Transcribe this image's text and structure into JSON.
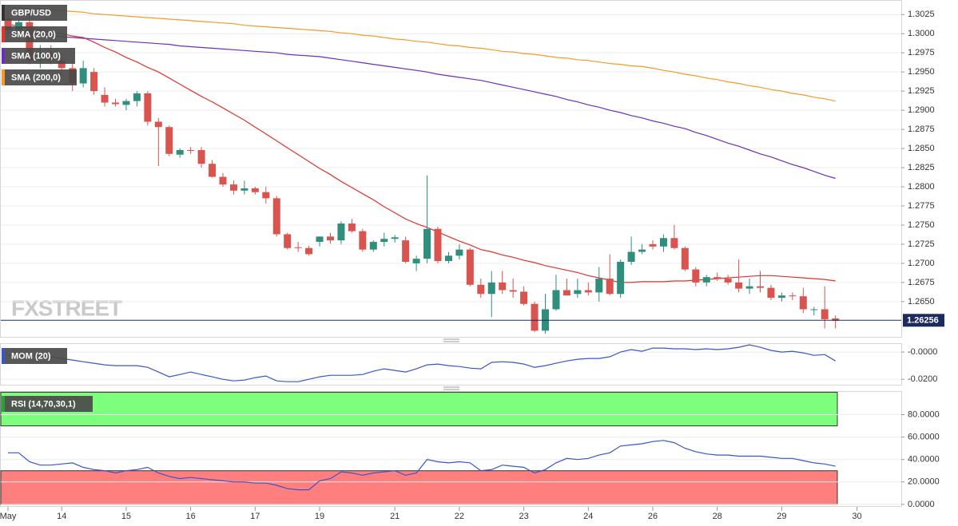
{
  "chart_data": [
    {
      "type": "candlestick",
      "name": "GBP/USD",
      "brand": "FXSTREET",
      "categories": [
        "May",
        null,
        null,
        null,
        null,
        "14",
        null,
        null,
        null,
        null,
        null,
        "15",
        null,
        null,
        null,
        null,
        null,
        "16",
        null,
        null,
        null,
        null,
        null,
        "17",
        null,
        null,
        null,
        null,
        null,
        "19",
        null,
        null,
        null,
        null,
        null,
        null,
        "21",
        null,
        null,
        null,
        null,
        null,
        "22",
        null,
        null,
        null,
        null,
        null,
        "23",
        null,
        null,
        null,
        null,
        null,
        "24",
        null,
        null,
        null,
        null,
        null,
        "26",
        null,
        null,
        null,
        null,
        null,
        "28",
        null,
        null,
        null,
        null,
        null,
        "29",
        null,
        null,
        null,
        null,
        null,
        null,
        "30"
      ],
      "open": [
        1.302,
        1.3005,
        1.3015,
        1.2965,
        1.2975,
        1.2965,
        1.2955,
        1.2935,
        1.295,
        1.292,
        1.291,
        1.2907,
        1.2912,
        1.2922,
        1.2885,
        1.2878,
        1.2842,
        1.2848,
        1.2848,
        1.283,
        1.2813,
        1.2803,
        1.2795,
        1.2798,
        1.2793,
        1.2785,
        1.2738,
        1.2721,
        1.272,
        1.2728,
        1.2735,
        1.273,
        1.2752,
        1.2742,
        1.2718,
        1.2728,
        1.2732,
        1.273,
        1.27,
        1.2706,
        1.2745,
        1.2703,
        1.271,
        1.2718,
        1.2672,
        1.266,
        1.2675,
        1.2665,
        1.2663,
        1.2647,
        1.2612,
        1.264,
        1.2665,
        1.266,
        1.2665,
        1.2662,
        1.268,
        1.266,
        1.2702,
        1.2715,
        1.2725,
        1.2722,
        1.2733,
        1.272,
        1.2692,
        1.2675,
        1.2682,
        1.268,
        1.2675,
        1.2667,
        1.267,
        1.2668,
        1.2655,
        1.2658,
        1.2657,
        1.264,
        1.264,
        1.2628,
        null,
        null
      ],
      "high": [
        1.303,
        1.3025,
        1.303,
        1.2985,
        1.2985,
        1.2975,
        1.2965,
        1.2965,
        1.2955,
        1.293,
        1.2915,
        1.2915,
        1.2925,
        1.2925,
        1.289,
        1.288,
        1.285,
        1.2852,
        1.2852,
        1.2835,
        1.2818,
        1.2808,
        1.2808,
        1.28,
        1.28,
        1.2788,
        1.274,
        1.2728,
        1.2723,
        1.2735,
        1.274,
        1.2755,
        1.2758,
        1.2745,
        1.273,
        1.274,
        1.2737,
        1.2735,
        1.271,
        1.2815,
        1.2748,
        1.2715,
        1.2725,
        1.272,
        1.268,
        1.269,
        1.269,
        1.268,
        1.267,
        1.265,
        1.266,
        1.2685,
        1.268,
        1.268,
        1.2675,
        1.2695,
        1.2712,
        1.2705,
        1.2735,
        1.2725,
        1.273,
        1.2738,
        1.275,
        1.2722,
        1.2695,
        1.2685,
        1.2688,
        1.2685,
        1.2705,
        1.268,
        1.269,
        1.2672,
        1.2662,
        1.2662,
        1.2668,
        1.2643,
        1.267,
        1.2632,
        null,
        null
      ],
      "low": [
        1.3,
        1.2995,
        1.296,
        1.2955,
        1.296,
        1.2945,
        1.2925,
        1.293,
        1.292,
        1.2905,
        1.2905,
        1.29,
        1.2905,
        1.288,
        1.2827,
        1.284,
        1.2838,
        1.2843,
        1.2825,
        1.2812,
        1.28,
        1.279,
        1.279,
        1.279,
        1.2778,
        1.2735,
        1.2718,
        1.2715,
        1.271,
        1.2722,
        1.2726,
        1.2725,
        1.274,
        1.2715,
        1.2715,
        1.2722,
        1.2727,
        1.27,
        1.269,
        1.27,
        1.27,
        1.27,
        1.2705,
        1.267,
        1.2655,
        1.263,
        1.266,
        1.2655,
        1.2645,
        1.261,
        1.2608,
        1.2638,
        1.2658,
        1.2655,
        1.2658,
        1.265,
        1.2658,
        1.2655,
        1.2698,
        1.2712,
        1.2718,
        1.2715,
        1.2718,
        1.269,
        1.267,
        1.267,
        1.2677,
        1.2672,
        1.2662,
        1.266,
        1.2662,
        1.2652,
        1.265,
        1.2652,
        1.2635,
        1.2632,
        1.2615,
        1.2615,
        null,
        null
      ],
      "close": [
        1.3005,
        1.3015,
        1.2965,
        1.2975,
        1.2965,
        1.2955,
        1.2935,
        1.2955,
        1.2925,
        1.291,
        1.2908,
        1.2912,
        1.2922,
        1.2885,
        1.2878,
        1.2843,
        1.2848,
        1.2847,
        1.283,
        1.2813,
        1.2803,
        1.2795,
        1.2798,
        1.2793,
        1.2785,
        1.2738,
        1.272,
        1.272,
        1.2712,
        1.2735,
        1.273,
        1.2752,
        1.2742,
        1.2718,
        1.2728,
        1.2732,
        1.2734,
        1.2702,
        1.2706,
        1.2745,
        1.2703,
        1.271,
        1.2718,
        1.2672,
        1.266,
        1.2675,
        1.2665,
        1.2663,
        1.2647,
        1.2612,
        1.264,
        1.2665,
        1.2658,
        1.2665,
        1.2662,
        1.268,
        1.266,
        1.2702,
        1.2715,
        1.2718,
        1.2722,
        1.2733,
        1.272,
        1.2692,
        1.2675,
        1.2682,
        1.268,
        1.2675,
        1.2667,
        1.267,
        1.2668,
        1.2655,
        1.2658,
        1.2657,
        1.264,
        1.264,
        1.2627,
        1.2625,
        null,
        null
      ],
      "up_color": "#2f8f7c",
      "down_color": "#d9534f",
      "series": [
        {
          "name": "SMA (20,0)",
          "color": "#e0332b",
          "values": [
            1.3012,
            1.301,
            1.3007,
            1.3005,
            1.3002,
            1.3,
            1.2997,
            1.2995,
            1.2989,
            1.2982,
            1.2976,
            1.2969,
            1.2963,
            1.2956,
            1.295,
            1.2942,
            1.2934,
            1.2926,
            1.2918,
            1.2911,
            1.2903,
            1.2895,
            1.2887,
            1.2878,
            1.2869,
            1.286,
            1.2851,
            1.2842,
            1.2833,
            1.2824,
            1.2816,
            1.2807,
            1.2799,
            1.2791,
            1.2783,
            1.2774,
            1.2766,
            1.2758,
            1.2752,
            1.2747,
            1.2741,
            1.2735,
            1.2729,
            1.2724,
            1.2718,
            1.2715,
            1.2711,
            1.2708,
            1.2704,
            1.2701,
            1.2697,
            1.2694,
            1.2691,
            1.2688,
            1.2684,
            1.2681,
            1.2678,
            1.2675,
            1.2675,
            1.2676,
            1.2676,
            1.2676,
            1.2677,
            1.2677,
            1.2678,
            1.2679,
            1.268,
            1.2681,
            1.2682,
            1.2683,
            1.2684,
            1.2684,
            1.2683,
            1.2682,
            1.2681,
            1.268,
            1.2679,
            1.2677,
            null,
            null
          ]
        },
        {
          "name": "SMA (100,0)",
          "color": "#6a2fbf",
          "values": [
            1.3002,
            1.3001,
            1.3,
            1.2999,
            1.2998,
            1.2996,
            1.2995,
            1.2994,
            1.2993,
            1.2992,
            1.2991,
            1.299,
            1.2989,
            1.2988,
            1.2987,
            1.2986,
            1.2984,
            1.2983,
            1.2982,
            1.2981,
            1.298,
            1.2979,
            1.2978,
            1.2977,
            1.2976,
            1.2975,
            1.2973,
            1.2972,
            1.2971,
            1.297,
            1.2968,
            1.2966,
            1.2964,
            1.2962,
            1.296,
            1.2958,
            1.2956,
            1.2954,
            1.2952,
            1.295,
            1.2947,
            1.2945,
            1.2943,
            1.2941,
            1.2939,
            1.2936,
            1.2933,
            1.293,
            1.2927,
            1.2924,
            1.2921,
            1.2918,
            1.2914,
            1.2911,
            1.2907,
            1.2904,
            1.29,
            1.2897,
            1.2893,
            1.289,
            1.2886,
            1.2883,
            1.2879,
            1.2876,
            1.2871,
            1.2867,
            1.2862,
            1.2857,
            1.2853,
            1.2848,
            1.2843,
            1.2839,
            1.2834,
            1.2829,
            1.2825,
            1.282,
            1.2815,
            1.2811,
            null,
            null
          ]
        },
        {
          "name": "SMA (200,0)",
          "color": "#f39a2b",
          "values": [
            1.3035,
            1.3034,
            1.3033,
            1.3032,
            1.3031,
            1.303,
            1.3029,
            1.3028,
            1.3026,
            1.3025,
            1.3024,
            1.3023,
            1.3022,
            1.3021,
            1.302,
            1.3019,
            1.3018,
            1.3017,
            1.3016,
            1.3015,
            1.3014,
            1.3013,
            1.3011,
            1.301,
            1.3009,
            1.3008,
            1.3007,
            1.3006,
            1.3005,
            1.3004,
            1.3003,
            1.3001,
            1.3,
            1.2998,
            1.2997,
            1.2995,
            1.2993,
            1.2992,
            1.299,
            1.2989,
            1.2987,
            1.2985,
            1.2984,
            1.2982,
            1.2981,
            1.2979,
            1.2977,
            1.2976,
            1.2974,
            1.2973,
            1.2971,
            1.2969,
            1.2968,
            1.2966,
            1.2965,
            1.2963,
            1.2961,
            1.296,
            1.2958,
            1.2957,
            1.2955,
            1.2952,
            1.295,
            1.2947,
            1.2945,
            1.2942,
            1.294,
            1.2937,
            1.2935,
            1.2932,
            1.293,
            1.2927,
            1.2925,
            1.2922,
            1.292,
            1.2917,
            1.2915,
            1.2912,
            null,
            null
          ]
        }
      ],
      "last": 1.26256,
      "last_color": "#1c2b5e",
      "ylim": [
        1.2604,
        1.3044
      ],
      "yticks": [
        {
          "value": 1.265,
          "label": "1.2650"
        },
        {
          "value": 1.2675,
          "label": "1.2675"
        },
        {
          "value": 1.27,
          "label": "1.2700"
        },
        {
          "value": 1.2725,
          "label": "1.2725"
        },
        {
          "value": 1.275,
          "label": "1.2750"
        },
        {
          "value": 1.2775,
          "label": "1.2775"
        },
        {
          "value": 1.28,
          "label": "1.2800"
        },
        {
          "value": 1.2825,
          "label": "1.2825"
        },
        {
          "value": 1.285,
          "label": "1.2850"
        },
        {
          "value": 1.2875,
          "label": "1.2875"
        },
        {
          "value": 1.29,
          "label": "1.2900"
        },
        {
          "value": 1.2925,
          "label": "1.2925"
        },
        {
          "value": 1.295,
          "label": "1.2950"
        },
        {
          "value": 1.2975,
          "label": "1.2975"
        },
        {
          "value": 1.3,
          "label": "1.3000"
        },
        {
          "value": 1.3025,
          "label": "1.3025"
        }
      ],
      "grid": true
    },
    {
      "type": "line",
      "series": [
        {
          "name": "MOM (20)",
          "color": "#3a55c8",
          "values": [
            -0.0024,
            -0.0024,
            -0.0024,
            -0.0024,
            -0.0035,
            -0.0047,
            -0.0059,
            -0.0071,
            -0.0082,
            -0.0094,
            -0.01,
            -0.01,
            -0.01,
            -0.0112,
            -0.0147,
            -0.0182,
            -0.0165,
            -0.0147,
            -0.0165,
            -0.0182,
            -0.02,
            -0.0212,
            -0.0206,
            -0.0188,
            -0.0176,
            -0.0212,
            -0.0218,
            -0.0218,
            -0.02,
            -0.0182,
            -0.0171,
            -0.0171,
            -0.0171,
            -0.0165,
            -0.0141,
            -0.0123,
            -0.0135,
            -0.0147,
            -0.0123,
            -0.0094,
            -0.0088,
            -0.01,
            -0.0106,
            -0.0118,
            -0.0123,
            -0.0076,
            -0.0071,
            -0.0076,
            -0.0088,
            -0.0112,
            -0.01,
            -0.0082,
            -0.0065,
            -0.0053,
            -0.0047,
            -0.0047,
            -0.0035,
            0.0,
            0.0018,
            0.0006,
            0.0029,
            0.0029,
            0.0024,
            0.0024,
            0.0018,
            0.0024,
            0.0018,
            0.0024,
            0.0035,
            0.0053,
            0.0035,
            0.0012,
            0.0,
            0.0006,
            -0.0006,
            -0.0024,
            -0.0018,
            -0.0065,
            null,
            null
          ]
        }
      ],
      "ylim": [
        -0.024,
        0.0065
      ],
      "yticks": [
        {
          "value": 0,
          "label": "-0.0000"
        },
        {
          "value": -0.02,
          "label": "-0.0200"
        }
      ],
      "grid": true
    },
    {
      "type": "line",
      "series": [
        {
          "name": "RSI (14,70,30,1)",
          "color": "#3a55c8",
          "values": [
            46,
            46,
            38,
            35,
            35,
            36,
            37,
            33,
            31,
            30,
            28,
            30,
            31,
            33,
            28,
            25,
            23,
            24,
            23,
            22,
            21,
            20,
            20,
            19,
            19,
            17,
            14,
            13,
            13,
            21,
            23,
            29,
            28,
            26,
            28,
            29,
            30,
            26,
            28,
            40,
            38,
            37,
            38,
            37,
            30,
            31,
            35,
            34,
            33,
            28,
            31,
            37,
            41,
            40,
            41,
            44,
            46,
            52,
            53,
            54,
            56,
            57,
            55,
            50,
            47,
            45,
            44,
            44,
            43,
            43,
            43,
            42,
            41,
            41,
            39,
            37,
            36,
            34,
            null,
            null
          ]
        }
      ],
      "bands": [
        {
          "from": 70,
          "to": 100,
          "color": "#7dff7d"
        },
        {
          "from": 0,
          "to": 30,
          "color": "#ff7f7f"
        }
      ],
      "ylim": [
        -1.5,
        101
      ],
      "yticks": [
        {
          "value": 0,
          "label": "0.0000"
        },
        {
          "value": 20,
          "label": "20.0000"
        },
        {
          "value": 40,
          "label": "40.0000"
        },
        {
          "value": 60,
          "label": "60.0000"
        },
        {
          "value": 80,
          "label": "80.0000"
        }
      ],
      "grid": true
    }
  ]
}
